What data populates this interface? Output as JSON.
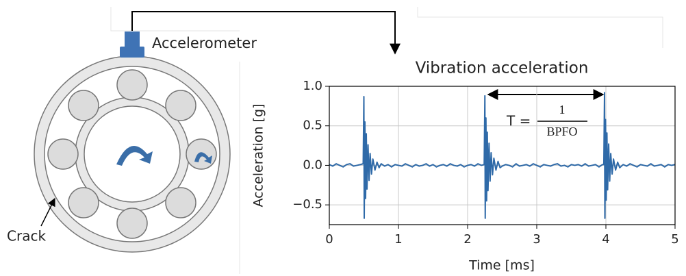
{
  "labels": {
    "sensor": "Accelerometer",
    "crack": "Crack"
  },
  "chart_data": {
    "type": "line",
    "title": "Vibration acceleration",
    "xlabel": "Time [ms]",
    "ylabel": "Acceleration [g]",
    "annotation": {
      "lhs": "T =",
      "numerator": "1",
      "denominator": "BPFO"
    },
    "color": "#2f6aa8",
    "grid": true,
    "xlim": [
      0,
      5
    ],
    "ylim": [
      -0.75,
      1.0
    ],
    "xticks": [
      0,
      1,
      2,
      3,
      4,
      5
    ],
    "yticks": [
      {
        "value": -0.5,
        "label": "−0.5"
      },
      {
        "value": 0,
        "label": "0.0"
      },
      0.5,
      {
        "value": 1,
        "label": "1.0"
      }
    ],
    "x": [
      0,
      0.05,
      0.1,
      0.15,
      0.2,
      0.25,
      0.3,
      0.35,
      0.4,
      0.45,
      0.49,
      0.5,
      0.505,
      0.515,
      0.525,
      0.535,
      0.545,
      0.56,
      0.575,
      0.59,
      0.61,
      0.63,
      0.66,
      0.69,
      0.72,
      0.75,
      0.8,
      0.85,
      0.9,
      0.95,
      1.0,
      1.05,
      1.1,
      1.15,
      1.2,
      1.25,
      1.3,
      1.35,
      1.4,
      1.45,
      1.5,
      1.55,
      1.6,
      1.65,
      1.7,
      1.75,
      1.8,
      1.85,
      1.9,
      1.95,
      2.0,
      2.05,
      2.1,
      2.15,
      2.2,
      2.24,
      2.25,
      2.255,
      2.265,
      2.275,
      2.285,
      2.295,
      2.31,
      2.325,
      2.34,
      2.36,
      2.38,
      2.41,
      2.44,
      2.47,
      2.5,
      2.55,
      2.6,
      2.65,
      2.7,
      2.75,
      2.8,
      2.85,
      2.9,
      2.95,
      3.0,
      3.05,
      3.1,
      3.15,
      3.2,
      3.25,
      3.3,
      3.35,
      3.4,
      3.45,
      3.5,
      3.55,
      3.6,
      3.65,
      3.7,
      3.75,
      3.8,
      3.85,
      3.9,
      3.95,
      3.97,
      3.98,
      3.985,
      3.995,
      4.005,
      4.015,
      4.025,
      4.04,
      4.055,
      4.07,
      4.09,
      4.11,
      4.14,
      4.17,
      4.2,
      4.25,
      4.3,
      4.35,
      4.4,
      4.45,
      4.5,
      4.55,
      4.6,
      4.65,
      4.7,
      4.75,
      4.8,
      4.85,
      4.9,
      4.95,
      5.0
    ],
    "values": [
      0.01,
      -0.01,
      0.02,
      0.0,
      -0.02,
      0.01,
      0.02,
      -0.01,
      0.0,
      0.01,
      0.02,
      0.87,
      -0.67,
      0.55,
      -0.42,
      0.4,
      -0.3,
      0.26,
      -0.19,
      0.15,
      -0.11,
      0.08,
      -0.06,
      0.04,
      -0.03,
      0.02,
      -0.01,
      0.01,
      -0.02,
      0.01,
      0.0,
      -0.01,
      0.02,
      0.0,
      -0.02,
      0.01,
      -0.01,
      0.0,
      0.02,
      -0.01,
      0.01,
      -0.02,
      0.0,
      0.01,
      -0.01,
      0.02,
      0.0,
      -0.01,
      0.01,
      -0.02,
      0.0,
      0.01,
      -0.01,
      0.02,
      0.0,
      0.01,
      0.88,
      -0.67,
      0.6,
      -0.45,
      0.42,
      -0.32,
      0.28,
      -0.2,
      0.16,
      -0.12,
      0.09,
      -0.06,
      0.05,
      -0.03,
      -0.01,
      0.01,
      0.0,
      -0.02,
      0.02,
      -0.01,
      0.0,
      0.01,
      -0.01,
      0.02,
      0.0,
      -0.02,
      0.01,
      0.0,
      -0.01,
      0.01,
      0.02,
      -0.01,
      0.0,
      -0.02,
      0.01,
      0.0,
      0.01,
      -0.01,
      0.02,
      -0.01,
      0.0,
      0.01,
      -0.02,
      0.01,
      0.01,
      0.92,
      -0.67,
      0.58,
      -0.44,
      0.41,
      -0.31,
      0.27,
      -0.2,
      0.15,
      -0.11,
      0.08,
      -0.06,
      0.04,
      -0.03,
      0.01,
      -0.01,
      0.02,
      0.0,
      -0.02,
      0.01,
      0.0,
      -0.01,
      0.02,
      -0.01,
      0.0,
      0.01,
      -0.02,
      0.01,
      0.0,
      0.01
    ]
  }
}
